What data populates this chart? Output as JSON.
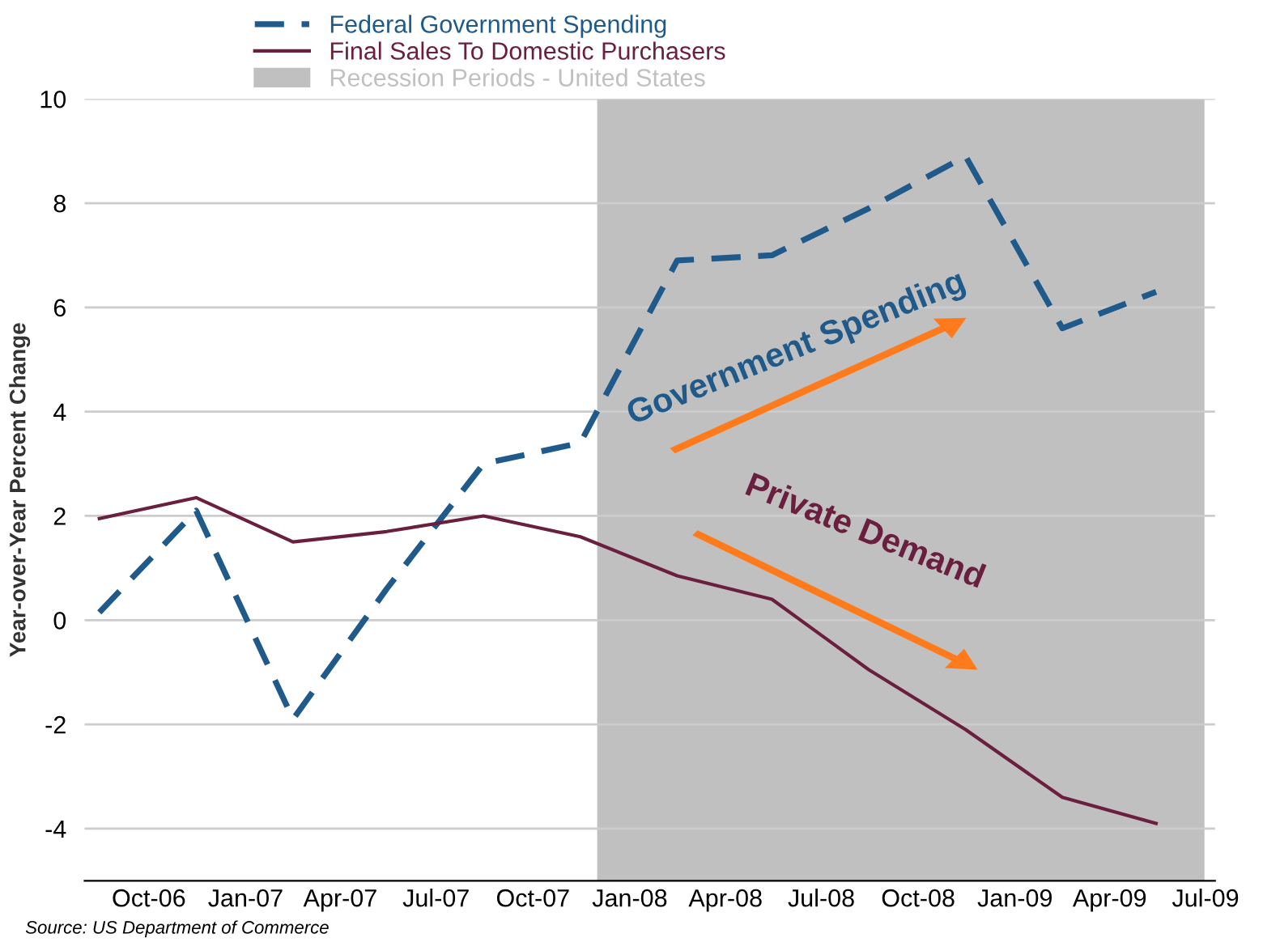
{
  "chart_data": {
    "type": "line",
    "ylabel": "Year-over-Year Percent Change",
    "x": [
      "2006-08-15",
      "2006-11-15",
      "2007-02-15",
      "2007-05-15",
      "2007-08-15",
      "2007-11-15",
      "2008-02-15",
      "2008-05-15",
      "2008-08-15",
      "2008-11-15",
      "2009-02-15",
      "2009-05-15"
    ],
    "series": [
      {
        "name": "Federal Government Spending",
        "color": "#1f5a8a",
        "line_style": "dashed",
        "values": [
          0.15,
          2.1,
          -1.9,
          0.6,
          3.0,
          3.4,
          6.9,
          7.0,
          7.9,
          8.9,
          5.6,
          6.3
        ]
      },
      {
        "name": "Final Sales To Domestic Purchasers",
        "color": "#6b1f3f",
        "line_style": "solid",
        "values": [
          1.95,
          2.35,
          1.5,
          1.7,
          2.0,
          1.6,
          0.85,
          0.4,
          -0.95,
          -2.1,
          -3.4,
          -3.9
        ]
      }
    ],
    "bands": [
      {
        "axis": "x",
        "from": "2007-12-01",
        "to": "2009-06-30",
        "label": "Recession Periods - United States",
        "color": "#c0c0c0"
      }
    ],
    "xlim": [
      "2006-08-01",
      "2009-07-10"
    ],
    "xticks": [
      {
        "value": "2006-10-01",
        "label": "Oct-06"
      },
      {
        "value": "2007-01-01",
        "label": "Jan-07"
      },
      {
        "value": "2007-04-01",
        "label": "Apr-07"
      },
      {
        "value": "2007-07-01",
        "label": "Jul-07"
      },
      {
        "value": "2007-10-01",
        "label": "Oct-07"
      },
      {
        "value": "2008-01-01",
        "label": "Jan-08"
      },
      {
        "value": "2008-04-01",
        "label": "Apr-08"
      },
      {
        "value": "2008-07-01",
        "label": "Jul-08"
      },
      {
        "value": "2008-10-01",
        "label": "Oct-08"
      },
      {
        "value": "2009-01-01",
        "label": "Jan-09"
      },
      {
        "value": "2009-04-01",
        "label": "Apr-09"
      },
      {
        "value": "2009-07-01",
        "label": "Jul-09"
      }
    ],
    "ylim": [
      -5,
      10
    ],
    "yticks": [
      -4,
      -2,
      0,
      2,
      4,
      6,
      8,
      10
    ],
    "grid": "y",
    "legend": "top left",
    "annotations": [
      "Government Spending",
      "Private Demand",
      "Source: US Department of Commerce"
    ]
  }
}
